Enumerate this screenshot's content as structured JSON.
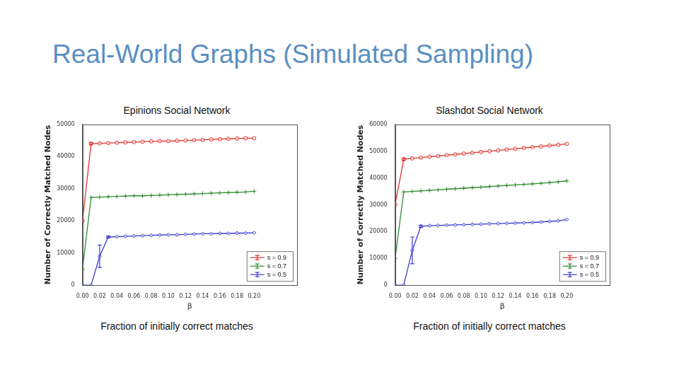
{
  "page_title": "Real-World Graphs (Simulated Sampling)",
  "chart_data": [
    {
      "type": "line",
      "title": "Epinions Social Network",
      "caption": "Fraction of initially correct matches",
      "x_label": "β",
      "y_label": "Number of Correctly Matched Nodes",
      "x": [
        0,
        0.01,
        0.02,
        0.03,
        0.04,
        0.05,
        0.06,
        0.07,
        0.08,
        0.09,
        0.1,
        0.11,
        0.12,
        0.13,
        0.14,
        0.15,
        0.16,
        0.17,
        0.18,
        0.19,
        0.2
      ],
      "series": [
        {
          "name": "s = 0.9",
          "color": "#e0302a",
          "marker": "circle",
          "values": [
            20000,
            44000,
            44100,
            44200,
            44300,
            44400,
            44500,
            44600,
            44700,
            44800,
            44800,
            44900,
            45000,
            45100,
            45200,
            45300,
            45400,
            45500,
            45600,
            45700,
            45700
          ],
          "errors": [
            0,
            300,
            0,
            0,
            0,
            0,
            0,
            0,
            0,
            0,
            0,
            0,
            0,
            0,
            0,
            0,
            0,
            0,
            0,
            0,
            0
          ]
        },
        {
          "name": "s = 0.7",
          "color": "#2e8b2e",
          "marker": "plus",
          "values": [
            5000,
            27300,
            27400,
            27500,
            27600,
            27700,
            27800,
            27800,
            27900,
            28000,
            28100,
            28200,
            28300,
            28400,
            28500,
            28600,
            28700,
            28800,
            28900,
            29000,
            29200
          ],
          "errors": [
            0,
            0,
            0,
            0,
            0,
            0,
            0,
            0,
            0,
            0,
            0,
            0,
            0,
            0,
            0,
            0,
            0,
            0,
            0,
            0,
            0
          ]
        },
        {
          "name": "s = 0.5",
          "color": "#3a3ad0",
          "marker": "diamond",
          "values": [
            0,
            0,
            9000,
            15000,
            15100,
            15200,
            15300,
            15400,
            15500,
            15600,
            15700,
            15700,
            15800,
            15900,
            16000,
            16000,
            16100,
            16100,
            16200,
            16200,
            16300
          ],
          "errors": [
            0,
            0,
            3500,
            300,
            0,
            0,
            0,
            0,
            0,
            0,
            0,
            0,
            0,
            0,
            0,
            0,
            0,
            0,
            0,
            0,
            0
          ]
        }
      ],
      "xlim": [
        0,
        0.25
      ],
      "xticks": [
        {
          "value": 0,
          "label": "0.00"
        },
        {
          "value": 0.02,
          "label": "0.02"
        },
        {
          "value": 0.04,
          "label": "0.04"
        },
        {
          "value": 0.06,
          "label": "0.06"
        },
        {
          "value": 0.08,
          "label": "0.08"
        },
        {
          "value": 0.1,
          "label": "0.10"
        },
        {
          "value": 0.12,
          "label": "0.12"
        },
        {
          "value": 0.14,
          "label": "0.14"
        },
        {
          "value": 0.16,
          "label": "0.16"
        },
        {
          "value": 0.18,
          "label": "0.18"
        },
        {
          "value": 0.2,
          "label": "0.20"
        }
      ],
      "ylim": [
        0,
        50000
      ],
      "yticks": [
        0,
        10000,
        20000,
        30000,
        40000,
        50000
      ],
      "grid": false,
      "legend": "lower right"
    },
    {
      "type": "line",
      "title": "Slashdot Social Network",
      "caption": "Fraction of initially correct matches",
      "x_label": "β",
      "y_label": "Number of Correctly Matched Nodes",
      "x": [
        0,
        0.01,
        0.02,
        0.03,
        0.04,
        0.05,
        0.06,
        0.07,
        0.08,
        0.09,
        0.1,
        0.11,
        0.12,
        0.13,
        0.14,
        0.15,
        0.16,
        0.17,
        0.18,
        0.19,
        0.2
      ],
      "series": [
        {
          "name": "s = 0.9",
          "color": "#e0302a",
          "marker": "circle",
          "values": [
            30000,
            47000,
            47300,
            47600,
            47900,
            48200,
            48500,
            48800,
            49100,
            49400,
            49700,
            50000,
            50300,
            50600,
            50900,
            51200,
            51500,
            51800,
            52100,
            52400,
            52700
          ],
          "errors": [
            0,
            400,
            0,
            0,
            0,
            0,
            0,
            0,
            0,
            0,
            0,
            0,
            0,
            0,
            0,
            0,
            0,
            0,
            0,
            0,
            0
          ]
        },
        {
          "name": "s = 0.7",
          "color": "#2e8b2e",
          "marker": "plus",
          "values": [
            10000,
            34800,
            35000,
            35200,
            35400,
            35600,
            35800,
            36000,
            36200,
            36400,
            36600,
            36800,
            37000,
            37200,
            37400,
            37600,
            37800,
            38000,
            38300,
            38600,
            38900
          ],
          "errors": [
            0,
            0,
            0,
            0,
            0,
            0,
            0,
            0,
            0,
            0,
            0,
            0,
            0,
            0,
            0,
            0,
            0,
            0,
            0,
            0,
            0
          ]
        },
        {
          "name": "s = 0.5",
          "color": "#3a3ad0",
          "marker": "diamond",
          "values": [
            0,
            0,
            13000,
            22000,
            22200,
            22300,
            22400,
            22500,
            22600,
            22700,
            22800,
            22900,
            23000,
            23100,
            23200,
            23300,
            23400,
            23600,
            23800,
            24000,
            24500
          ],
          "errors": [
            0,
            0,
            5000,
            400,
            0,
            0,
            0,
            0,
            0,
            0,
            0,
            0,
            0,
            0,
            0,
            0,
            0,
            0,
            0,
            0,
            0
          ]
        }
      ],
      "xlim": [
        0,
        0.25
      ],
      "xticks": [
        {
          "value": 0,
          "label": "0.00"
        },
        {
          "value": 0.02,
          "label": "0.02"
        },
        {
          "value": 0.04,
          "label": "0.04"
        },
        {
          "value": 0.06,
          "label": "0.06"
        },
        {
          "value": 0.08,
          "label": "0.08"
        },
        {
          "value": 0.1,
          "label": "0.10"
        },
        {
          "value": 0.12,
          "label": "0.12"
        },
        {
          "value": 0.14,
          "label": "0.14"
        },
        {
          "value": 0.16,
          "label": "0.16"
        },
        {
          "value": 0.18,
          "label": "0.18"
        },
        {
          "value": 0.2,
          "label": "0.20"
        }
      ],
      "ylim": [
        0,
        60000
      ],
      "yticks": [
        0,
        10000,
        20000,
        30000,
        40000,
        50000,
        60000
      ],
      "grid": false,
      "legend": "lower right"
    }
  ]
}
